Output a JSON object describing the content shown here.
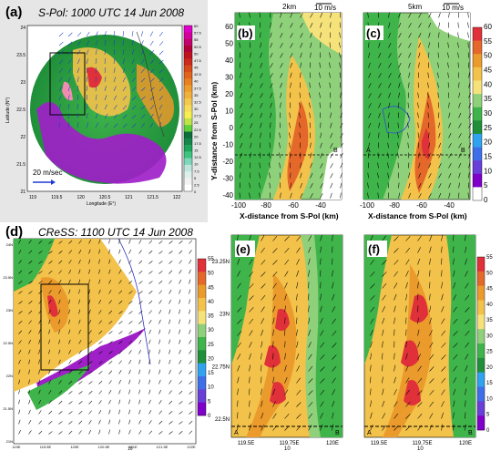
{
  "panels": {
    "a": {
      "letter": "(a)",
      "title": "S-Pol: 1000 UTC 14 Jun 2008",
      "xlabel": "Longitude (E°)",
      "ylabel": "Latitude (N°)",
      "xticks": [
        "119",
        "119.5",
        "120",
        "120.5",
        "121",
        "121.5",
        "122"
      ],
      "yticks": [
        "21",
        "21.5",
        "22",
        "22.5",
        "23",
        "23.5",
        "24"
      ],
      "vector_label": "20 m/sec",
      "colorbar_ticks": [
        "60",
        "57.5",
        "55",
        "52.5",
        "50",
        "47.5",
        "45",
        "42.5",
        "40",
        "37.5",
        "35",
        "32.5",
        "30",
        "27.5",
        "25",
        "22.5",
        "20",
        "17.5",
        "15",
        "12.5",
        "10",
        "7.5",
        "5",
        "2.5",
        "0"
      ]
    },
    "b": {
      "letter": "(b)",
      "height_label": "2km",
      "ref_vector_label": "10 m/s",
      "corner_label": "B"
    },
    "c": {
      "letter": "(c)",
      "height_label": "5km",
      "ref_vector_label": "10 m/s",
      "corner_label_left": "A",
      "corner_label_right": "B"
    },
    "bc_axes": {
      "xlabel": "X-distance from S-Pol (km)",
      "ylabel": "Y-distance from S-Pol (km)",
      "xticks": [
        "-100",
        "-80",
        "-60",
        "-40"
      ],
      "yticks": [
        "60",
        "50",
        "40",
        "30",
        "20",
        "10",
        "0",
        "-10",
        "-20",
        "-30",
        "-40"
      ],
      "colorbar_ticks": [
        "60",
        "55",
        "50",
        "45",
        "40",
        "35",
        "30",
        "25",
        "20",
        "15",
        "10",
        "5",
        "0"
      ]
    },
    "d": {
      "letter": "(d)",
      "title": "CReSS: 1100 UTC 14 Jun 2008",
      "xticks": [
        "119E",
        "119.5E",
        "120E",
        "120.5E",
        "121E",
        "121.5E",
        "122E"
      ],
      "yticks": [
        "24N",
        "23.5N",
        "23N",
        "22.5N",
        "22N",
        "21.5N",
        "21N"
      ],
      "ref_vector_label": "10",
      "colorbar_ticks": [
        "55",
        "50",
        "45",
        "40",
        "35",
        "30",
        "25",
        "20",
        "15",
        "10",
        "5",
        "0"
      ]
    },
    "e": {
      "letter": "(e)",
      "xticks": [
        "119.5E",
        "119.75E",
        "120E"
      ],
      "yticks": [
        "23.25N",
        "23N",
        "22.75N",
        "22.5N"
      ],
      "label_a": "A",
      "label_b": "B",
      "ref_vector_label": "10"
    },
    "f": {
      "letter": "(f)",
      "xticks": [
        "119.5E",
        "119.75E",
        "120E"
      ],
      "label_a": "A",
      "label_b": "B",
      "ref_vector_label": "10",
      "colorbar_ticks": [
        "55",
        "50",
        "45",
        "40",
        "35",
        "30",
        "25",
        "20",
        "15",
        "10",
        "5",
        "0"
      ]
    }
  },
  "colors": {
    "scale_dense": [
      "#ffffff",
      "#f2f2f2",
      "#ddf0e9",
      "#bfe6dd",
      "#7fd6b8",
      "#3ec47e",
      "#1fa65a",
      "#16864a",
      "#0d6e3c",
      "#5fcf3a",
      "#bde34a",
      "#f5ef52",
      "#f6dc5b",
      "#f3c84e",
      "#f0b03c",
      "#ee9c2c",
      "#e98020",
      "#e1641b",
      "#d94a1a",
      "#cc2a1d",
      "#c01020",
      "#b4003a",
      "#c4006f",
      "#d3009f",
      "#e000c8"
    ],
    "scale_coarse": [
      "#ffffff",
      "#7f00c8",
      "#6a3fd8",
      "#3f6fe8",
      "#2fa2f0",
      "#1f8f3a",
      "#3fb44a",
      "#8fd07a",
      "#f5e27a",
      "#f3c24a",
      "#eb9a2c",
      "#e4682a",
      "#e0303a"
    ],
    "precip_palette": {
      "white": "#ffffff",
      "purple": "#a020c8",
      "dark_green": "#1f8f3a",
      "green": "#3fb44a",
      "light_green": "#8fd07a",
      "pale_yellow": "#f5e27a",
      "yellow": "#f3c24a",
      "orange": "#eb9a2c",
      "dark_orange": "#e4682a",
      "red": "#e0303a",
      "brown_red": "#b84a3a"
    }
  },
  "chart_data": [
    {
      "type": "heatmap",
      "panel": "(a)",
      "title": "S-Pol: 1000 UTC 14 Jun 2008",
      "xlabel": "Longitude (E°)",
      "ylabel": "Latitude (N°)",
      "xlim": [
        119,
        122
      ],
      "ylim": [
        21,
        24
      ],
      "colorbar_range": [
        0,
        60
      ],
      "colorbar_step": 2.5
    },
    {
      "type": "heatmap",
      "panel": "(b)",
      "height": "2km",
      "xlabel": "X-distance from S-Pol (km)",
      "ylabel": "Y-distance from S-Pol (km)",
      "xlim": [
        -100,
        -35
      ],
      "ylim": [
        -40,
        65
      ],
      "colorbar_range": [
        0,
        60
      ],
      "colorbar_step": 5
    },
    {
      "type": "heatmap",
      "panel": "(c)",
      "height": "5km",
      "xlabel": "X-distance from S-Pol (km)",
      "ylabel": "Y-distance from S-Pol (km)",
      "xlim": [
        -100,
        -35
      ],
      "ylim": [
        -40,
        65
      ],
      "colorbar_range": [
        0,
        60
      ],
      "colorbar_step": 5
    },
    {
      "type": "heatmap",
      "panel": "(d)",
      "title": "CReSS: 1100 UTC 14 Jun 2008",
      "xlim": [
        119,
        122
      ],
      "ylim": [
        21,
        24
      ],
      "colorbar_range": [
        0,
        55
      ],
      "colorbar_step": 5
    },
    {
      "type": "heatmap",
      "panel": "(e)",
      "xlim": [
        119.4,
        120
      ],
      "ylim": [
        22.35,
        23.35
      ],
      "colorbar_range": [
        0,
        55
      ],
      "colorbar_step": 5
    },
    {
      "type": "heatmap",
      "panel": "(f)",
      "xlim": [
        119.4,
        120
      ],
      "ylim": [
        22.35,
        23.35
      ],
      "colorbar_range": [
        0,
        55
      ],
      "colorbar_step": 5
    }
  ]
}
